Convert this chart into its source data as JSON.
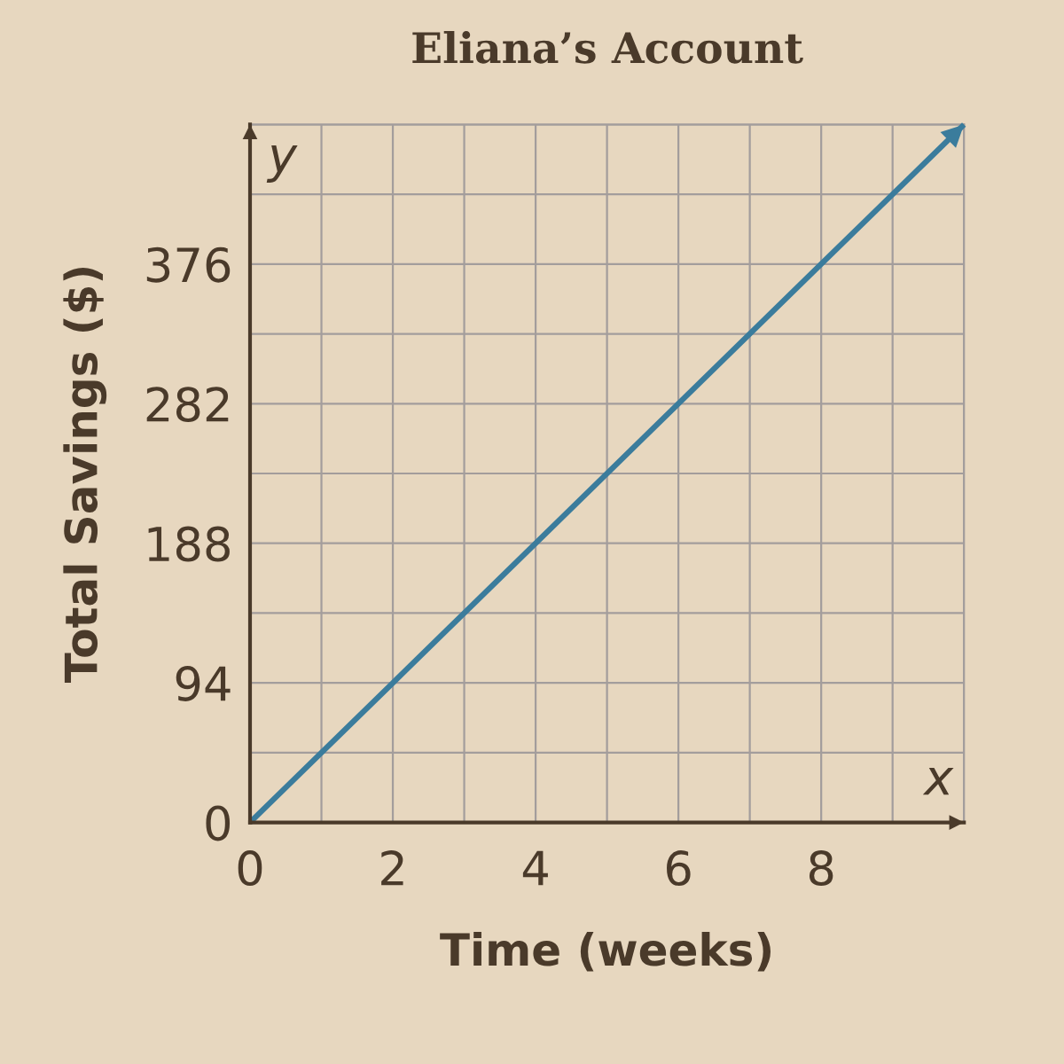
{
  "chart_data": {
    "type": "line",
    "title": "Eliana’s Account",
    "xlabel": "Time (weeks)",
    "ylabel": "Total Savings ($)",
    "annotations": [
      "y",
      "x"
    ],
    "x": [
      0,
      2,
      4,
      6,
      8,
      10
    ],
    "series": [
      {
        "color": "#3b7c9c",
        "values": [
          0,
          94,
          188,
          282,
          376,
          470
        ]
      }
    ],
    "xlim": [
      0,
      10
    ],
    "xticks": [
      0,
      {
        "value": 1,
        "label": null
      },
      2,
      {
        "value": 3,
        "label": null
      },
      4,
      {
        "value": 5,
        "label": null
      },
      6,
      {
        "value": 7,
        "label": null
      },
      8,
      {
        "value": 9,
        "label": null
      },
      {
        "value": 10,
        "label": null
      }
    ],
    "ylim": [
      0,
      470
    ],
    "yticks": [
      0,
      {
        "value": 47,
        "label": null
      },
      94,
      {
        "value": 141,
        "label": null
      },
      188,
      {
        "value": 235,
        "label": null
      },
      282,
      {
        "value": 329,
        "label": null
      },
      376,
      {
        "value": 423,
        "label": null
      },
      {
        "value": 470,
        "label": null
      }
    ],
    "grid": true,
    "marker": "none",
    "line_style": "solid"
  }
}
